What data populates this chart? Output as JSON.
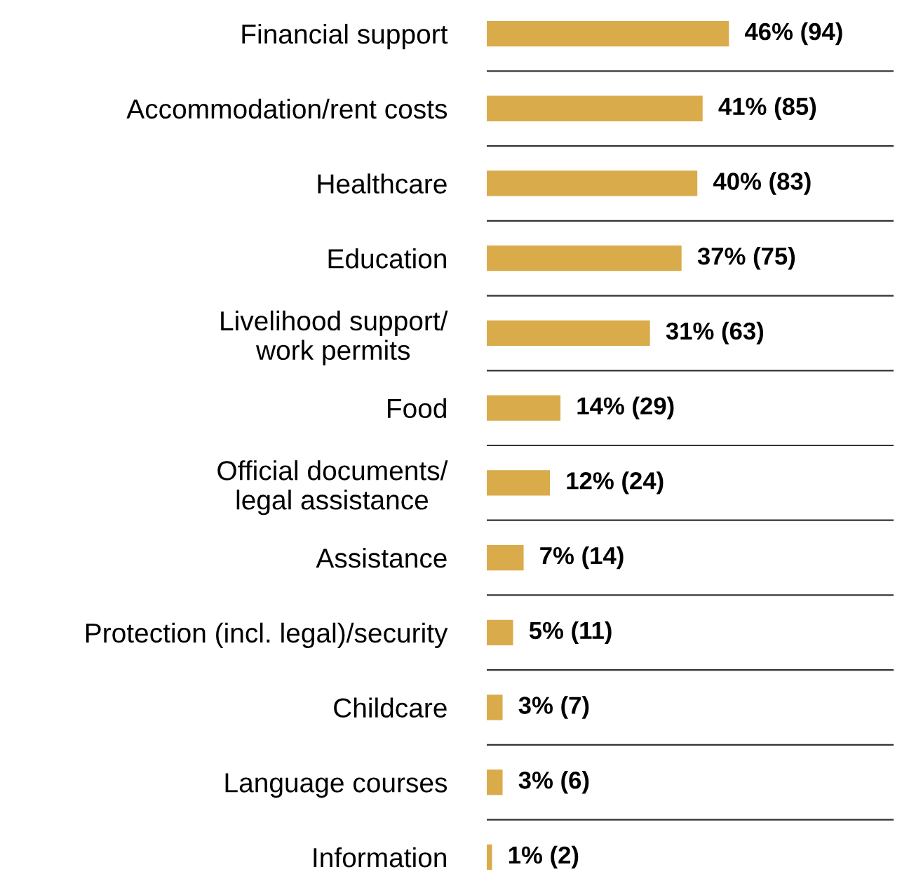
{
  "chart_data": {
    "type": "bar",
    "orientation": "horizontal",
    "categories": [
      "Financial support",
      "Accommodation/rent costs",
      "Healthcare",
      "Education",
      "Livelihood support/\nwork permits",
      "Food",
      "Official documents/\nlegal assistance",
      "Assistance",
      "Protection (incl. legal)/security",
      "Childcare",
      "Language courses",
      "Information"
    ],
    "values": [
      46,
      41,
      40,
      37,
      31,
      14,
      12,
      7,
      5,
      3,
      3,
      1
    ],
    "value_labels": [
      "46% (94)",
      "41% (85)",
      "40% (83)",
      "37% (75)",
      "31% (63)",
      "14% (29)",
      "12% (24)",
      "7% (14)",
      "5% (11)",
      "3% (7)",
      "3% (6)",
      "1% (2)"
    ],
    "color": "#d9ab4a",
    "grid": "y",
    "legend": false
  }
}
